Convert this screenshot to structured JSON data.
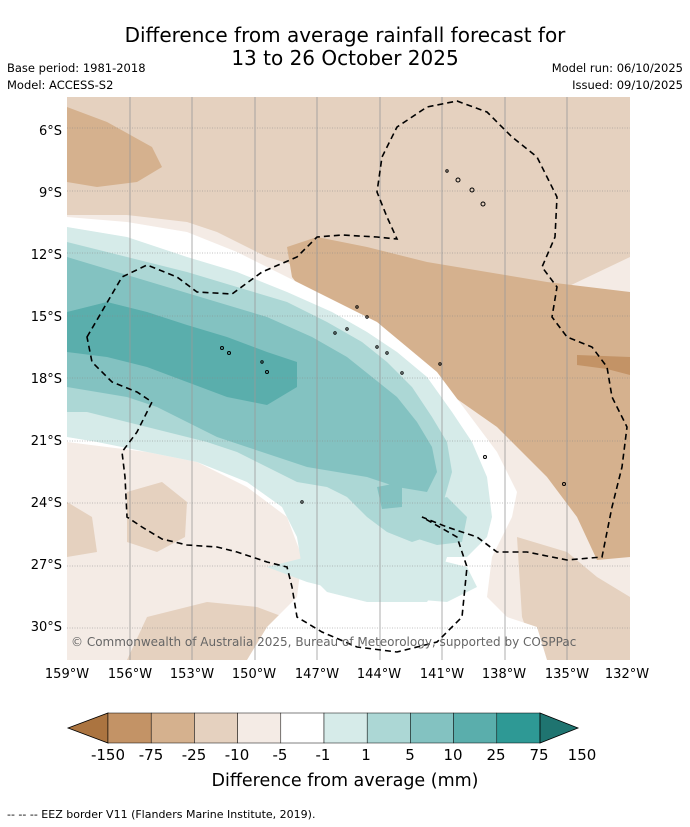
{
  "title_line1": "Difference from average rainfall forecast for",
  "title_line2": "13 to 26 October 2025",
  "meta_left": [
    "Base period: 1981-2018",
    "Model: ACCESS-S2"
  ],
  "meta_right": [
    "Model run: 06/10/2025",
    "Issued: 09/10/2025"
  ],
  "lat_labels": [
    "6°S",
    "9°S",
    "12°S",
    "15°S",
    "18°S",
    "21°S",
    "24°S",
    "27°S",
    "30°S"
  ],
  "lon_labels": [
    "159°W",
    "156°W",
    "153°W",
    "150°W",
    "147°W",
    "144°W",
    "141°W",
    "138°W",
    "135°W",
    "132°W"
  ],
  "credit": "© Commonwealth of Australia 2025, Bureau of Meteorology, supported by COSPPac",
  "colorbar": {
    "ticks": [
      "-150",
      "-75",
      "-25",
      "-10",
      "-5",
      "-1",
      "1",
      "5",
      "10",
      "25",
      "75",
      "150"
    ],
    "colors": [
      "#ab7440",
      "#c39366",
      "#d5b18e",
      "#e5d1bf",
      "#f4ebe5",
      "#ffffff",
      "#d6ebe9",
      "#acd7d5",
      "#83c2c1",
      "#5aaeac",
      "#2e9995",
      "#1f7470"
    ],
    "label": "Difference from average (mm)"
  },
  "footnote": "-- -- -- EEZ border V11 (Flanders Marine Institute, 2019).",
  "map_extent": {
    "lon": [
      -159,
      -132
    ],
    "lat": [
      -4.5,
      -31.5
    ]
  }
}
